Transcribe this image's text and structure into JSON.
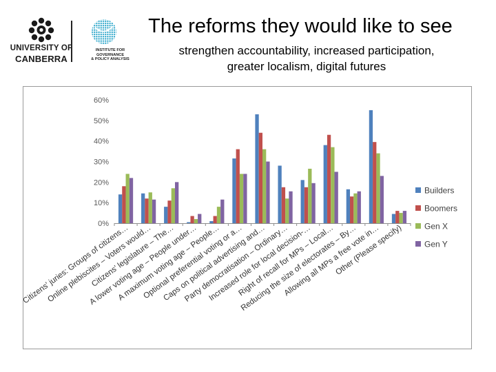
{
  "header": {
    "title": "The reforms they would like to see",
    "subtitle_line1": "strengthen accountability, increased participation,",
    "subtitle_line2": "greater localism, digital futures"
  },
  "logos": {
    "uc_line1": "UNIVERSITY OF",
    "uc_line2": "CANBERRA",
    "igpa_line1": "INSTITUTE FOR",
    "igpa_line2": "GOVERNANCE",
    "igpa_line3": "& POLICY ANALYSIS",
    "uc_icon": "university-crest-icon",
    "igpa_icon": "globe-icon",
    "uc_color": "#1a1a1a",
    "igpa_color": "#2aa5c9"
  },
  "chart_data": {
    "type": "bar",
    "title": "",
    "xlabel": "",
    "ylabel": "",
    "ylim": [
      0,
      60
    ],
    "yticks": [
      "0%",
      "10%",
      "20%",
      "30%",
      "40%",
      "50%",
      "60%"
    ],
    "grid": false,
    "legend_position": "right",
    "categories": [
      "Citizens' juries: Groups of citizens…",
      "Online plebiscites – Voters would…",
      "Citizens' legislature – The…",
      "A lower voting age – People under…",
      "A maximum voting age – People…",
      "Optional preferential voting or a…",
      "Caps on political advertising and…",
      "Party democratisation – Ordinary…",
      "Increased role for local decision-…",
      "Right of recall for MPs – Local…",
      "Reducing the size of electorates – By…",
      "Allowing all MPs a free vote in…",
      "Other (Please specify)"
    ],
    "series": [
      {
        "name": "Builders",
        "color": "#4f81bd",
        "values": [
          14,
          14.5,
          8,
          0.5,
          1,
          31.5,
          53,
          28,
          21,
          38,
          16.5,
          55,
          4.5
        ]
      },
      {
        "name": "Boomers",
        "color": "#c0504d",
        "values": [
          18,
          12,
          11,
          3.5,
          3.5,
          36,
          44,
          17.5,
          17.5,
          43,
          13,
          39.5,
          6
        ]
      },
      {
        "name": "Gen X",
        "color": "#9bbb59",
        "values": [
          24,
          15,
          17,
          2,
          8,
          24,
          36,
          12,
          26.5,
          37,
          14.5,
          34,
          5
        ]
      },
      {
        "name": "Gen Y",
        "color": "#8064a2",
        "values": [
          22,
          11.5,
          20,
          4.5,
          11.5,
          24,
          30,
          15.5,
          19.5,
          25,
          15.5,
          23,
          6
        ]
      }
    ]
  }
}
